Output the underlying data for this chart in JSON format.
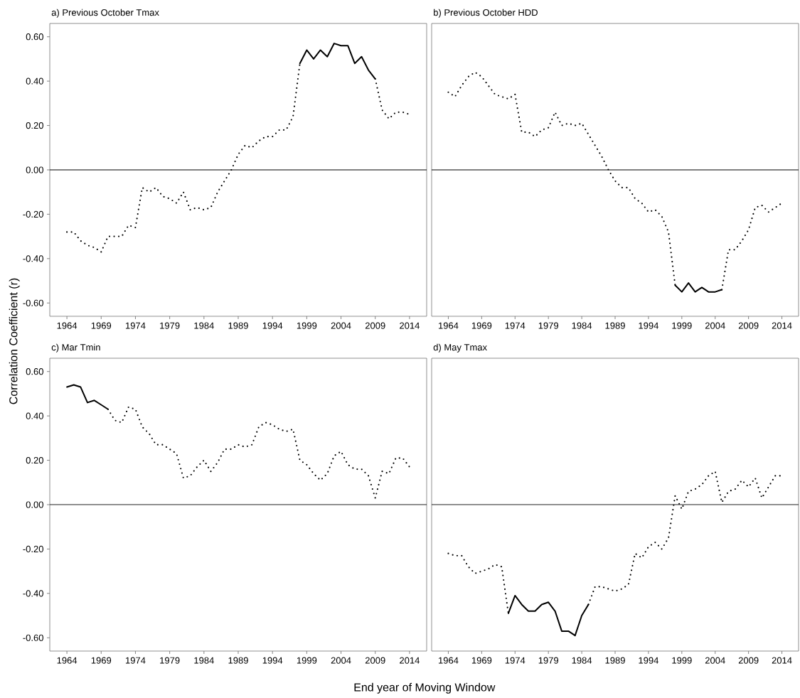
{
  "chart_data": [
    {
      "type": "line",
      "title": "a) Previous October Tmax",
      "ylabel": "Correlation Coefficient (r)",
      "xlim": [
        1961.5,
        2016.5
      ],
      "ylim": [
        -0.66,
        0.66
      ],
      "xticks": [
        1964,
        1969,
        1974,
        1979,
        1984,
        1989,
        1994,
        1999,
        2004,
        2009,
        2014
      ],
      "yticks": [
        {
          "value": -0.6,
          "label": "-0.60"
        },
        {
          "value": -0.4,
          "label": "-0.40"
        },
        {
          "value": -0.2,
          "label": "-0.20"
        },
        {
          "value": 0,
          "label": "0.00"
        },
        {
          "value": 0.2,
          "label": "0.20"
        },
        {
          "value": 0.4,
          "label": "0.40"
        },
        {
          "value": 0.6,
          "label": "0.60"
        }
      ],
      "x": [
        1964,
        1965,
        1966,
        1967,
        1968,
        1969,
        1970,
        1971,
        1972,
        1973,
        1974,
        1975,
        1976,
        1977,
        1978,
        1979,
        1980,
        1981,
        1982,
        1983,
        1984,
        1985,
        1986,
        1987,
        1988,
        1989,
        1990,
        1991,
        1992,
        1993,
        1994,
        1995,
        1996,
        1997,
        1998,
        1999,
        2000,
        2001,
        2002,
        2003,
        2004,
        2005,
        2006,
        2007,
        2008,
        2009,
        2010,
        2011,
        2012,
        2013,
        2014
      ],
      "ref_lines": [
        {
          "axis": "y",
          "value": 0,
          "color": "#000000"
        }
      ],
      "series": [
        {
          "color": "#000000",
          "line_style": "dotted",
          "values": [
            -0.28,
            -0.28,
            -0.32,
            -0.34,
            -0.35,
            -0.37,
            -0.3,
            -0.3,
            -0.3,
            -0.25,
            -0.26,
            -0.08,
            -0.1,
            -0.08,
            -0.12,
            -0.13,
            -0.15,
            -0.1,
            -0.18,
            -0.17,
            -0.18,
            -0.17,
            -0.1,
            -0.05,
            0.0,
            0.07,
            0.11,
            0.1,
            0.13,
            0.15,
            0.15,
            0.18,
            0.18,
            0.24,
            0.48,
            null,
            null,
            null,
            null,
            null,
            null,
            null,
            null,
            null,
            null,
            0.41,
            0.27,
            0.23,
            0.26,
            0.26,
            0.25
          ]
        },
        {
          "color": "#000000",
          "line_style": "solid",
          "values": [
            null,
            null,
            null,
            null,
            null,
            null,
            null,
            null,
            null,
            null,
            null,
            null,
            null,
            null,
            null,
            null,
            null,
            null,
            null,
            null,
            null,
            null,
            null,
            null,
            null,
            null,
            null,
            null,
            null,
            null,
            null,
            null,
            null,
            null,
            0.48,
            0.54,
            0.5,
            0.54,
            0.51,
            0.57,
            0.56,
            0.56,
            0.48,
            0.51,
            0.45,
            0.41,
            null,
            null,
            null,
            null,
            null
          ]
        }
      ]
    },
    {
      "type": "line",
      "title": "b) Previous October HDD",
      "xlim": [
        1961.5,
        2016.5
      ],
      "ylim": [
        -0.66,
        0.66
      ],
      "tick_labels": "x",
      "xticks": [
        1964,
        1969,
        1974,
        1979,
        1984,
        1989,
        1994,
        1999,
        2004,
        2009,
        2014
      ],
      "x": [
        1964,
        1965,
        1966,
        1967,
        1968,
        1969,
        1970,
        1971,
        1972,
        1973,
        1974,
        1975,
        1976,
        1977,
        1978,
        1979,
        1980,
        1981,
        1982,
        1983,
        1984,
        1985,
        1986,
        1987,
        1988,
        1989,
        1990,
        1991,
        1992,
        1993,
        1994,
        1995,
        1996,
        1997,
        1998,
        1999,
        2000,
        2001,
        2002,
        2003,
        2004,
        2005,
        2006,
        2007,
        2008,
        2009,
        2010,
        2011,
        2012,
        2013,
        2014
      ],
      "ref_lines": [
        {
          "axis": "y",
          "value": 0,
          "color": "#000000"
        }
      ],
      "series": [
        {
          "color": "#000000",
          "line_style": "dotted",
          "values": [
            0.35,
            0.33,
            0.38,
            0.42,
            0.44,
            0.42,
            0.38,
            0.34,
            0.33,
            0.32,
            0.34,
            0.17,
            0.17,
            0.15,
            0.18,
            0.19,
            0.26,
            0.2,
            0.21,
            0.2,
            0.21,
            0.16,
            0.11,
            0.06,
            0.0,
            -0.05,
            -0.08,
            -0.08,
            -0.13,
            -0.15,
            -0.19,
            -0.18,
            -0.21,
            -0.28,
            -0.52,
            null,
            null,
            null,
            null,
            null,
            null,
            -0.54,
            -0.36,
            -0.36,
            -0.32,
            -0.27,
            -0.17,
            -0.16,
            -0.19,
            -0.17,
            -0.15
          ]
        },
        {
          "color": "#000000",
          "line_style": "solid",
          "values": [
            null,
            null,
            null,
            null,
            null,
            null,
            null,
            null,
            null,
            null,
            null,
            null,
            null,
            null,
            null,
            null,
            null,
            null,
            null,
            null,
            null,
            null,
            null,
            null,
            null,
            null,
            null,
            null,
            null,
            null,
            null,
            null,
            null,
            null,
            -0.52,
            -0.55,
            -0.51,
            -0.55,
            -0.53,
            -0.55,
            -0.55,
            -0.54,
            null,
            null,
            null,
            null,
            null,
            null,
            null,
            null,
            null
          ]
        }
      ]
    },
    {
      "type": "line",
      "title": "c) Mar Tmin",
      "xlabel": "End year of Moving Window",
      "xlim": [
        1961.5,
        2016.5
      ],
      "ylim": [
        -0.66,
        0.66
      ],
      "xticks": [
        1964,
        1969,
        1974,
        1979,
        1984,
        1989,
        1994,
        1999,
        2004,
        2009,
        2014
      ],
      "yticks": [
        {
          "value": -0.6,
          "label": "-0.60"
        },
        {
          "value": -0.4,
          "label": "-0.40"
        },
        {
          "value": -0.2,
          "label": "-0.20"
        },
        {
          "value": 0,
          "label": "0.00"
        },
        {
          "value": 0.2,
          "label": "0.20"
        },
        {
          "value": 0.4,
          "label": "0.40"
        },
        {
          "value": 0.6,
          "label": "0.60"
        }
      ],
      "x": [
        1964,
        1965,
        1966,
        1967,
        1968,
        1969,
        1970,
        1971,
        1972,
        1973,
        1974,
        1975,
        1976,
        1977,
        1978,
        1979,
        1980,
        1981,
        1982,
        1983,
        1984,
        1985,
        1986,
        1987,
        1988,
        1989,
        1990,
        1991,
        1992,
        1993,
        1994,
        1995,
        1996,
        1997,
        1998,
        1999,
        2000,
        2001,
        2002,
        2003,
        2004,
        2005,
        2006,
        2007,
        2008,
        2009,
        2010,
        2011,
        2012,
        2013,
        2014
      ],
      "ref_lines": [
        {
          "axis": "y",
          "value": 0,
          "color": "#000000"
        }
      ],
      "series": [
        {
          "color": "#000000",
          "line_style": "dotted",
          "values": [
            null,
            null,
            null,
            null,
            null,
            null,
            0.43,
            0.38,
            0.37,
            0.44,
            0.43,
            0.35,
            0.32,
            0.27,
            0.27,
            0.25,
            0.23,
            0.12,
            0.13,
            0.17,
            0.2,
            0.15,
            0.19,
            0.25,
            0.25,
            0.27,
            0.26,
            0.27,
            0.35,
            0.37,
            0.36,
            0.34,
            0.33,
            0.34,
            0.2,
            0.18,
            0.14,
            0.11,
            0.14,
            0.22,
            0.24,
            0.18,
            0.16,
            0.16,
            0.13,
            0.03,
            0.15,
            0.14,
            0.21,
            0.21,
            0.17
          ]
        },
        {
          "color": "#000000",
          "line_style": "solid",
          "values": [
            0.53,
            0.54,
            0.53,
            0.46,
            0.47,
            0.45,
            0.43,
            null,
            null,
            null,
            null,
            null,
            null,
            null,
            null,
            null,
            null,
            null,
            null,
            null,
            null,
            null,
            null,
            null,
            null,
            null,
            null,
            null,
            null,
            null,
            null,
            null,
            null,
            null,
            null,
            null,
            null,
            null,
            null,
            null,
            null,
            null,
            null,
            null,
            null,
            null,
            null,
            null,
            null,
            null,
            null
          ]
        }
      ]
    },
    {
      "type": "line",
      "title": "d) May Tmax",
      "xlim": [
        1961.5,
        2016.5
      ],
      "ylim": [
        -0.66,
        0.66
      ],
      "tick_labels": "x",
      "xticks": [
        1964,
        1969,
        1974,
        1979,
        1984,
        1989,
        1994,
        1999,
        2004,
        2009,
        2014
      ],
      "x": [
        1964,
        1965,
        1966,
        1967,
        1968,
        1969,
        1970,
        1971,
        1972,
        1973,
        1974,
        1975,
        1976,
        1977,
        1978,
        1979,
        1980,
        1981,
        1982,
        1983,
        1984,
        1985,
        1986,
        1987,
        1988,
        1989,
        1990,
        1991,
        1992,
        1993,
        1994,
        1995,
        1996,
        1997,
        1998,
        1999,
        2000,
        2001,
        2002,
        2003,
        2004,
        2005,
        2006,
        2007,
        2008,
        2009,
        2010,
        2011,
        2012,
        2013,
        2014
      ],
      "ref_lines": [
        {
          "axis": "y",
          "value": 0,
          "color": "#000000"
        }
      ],
      "series": [
        {
          "color": "#000000",
          "line_style": "dotted",
          "values": [
            -0.22,
            -0.23,
            -0.23,
            -0.28,
            -0.31,
            -0.3,
            -0.29,
            -0.27,
            -0.28,
            -0.49,
            null,
            null,
            null,
            null,
            null,
            null,
            null,
            null,
            null,
            null,
            null,
            -0.45,
            -0.37,
            -0.37,
            -0.38,
            -0.39,
            -0.38,
            -0.36,
            -0.22,
            -0.24,
            -0.19,
            -0.17,
            -0.2,
            -0.15,
            0.04,
            -0.02,
            0.06,
            0.07,
            0.09,
            0.13,
            0.15,
            0.01,
            0.06,
            0.07,
            0.11,
            0.08,
            0.12,
            0.03,
            0.08,
            0.13,
            0.13
          ]
        },
        {
          "color": "#000000",
          "line_style": "solid",
          "values": [
            null,
            null,
            null,
            null,
            null,
            null,
            null,
            null,
            null,
            -0.49,
            -0.41,
            -0.45,
            -0.48,
            -0.48,
            -0.45,
            -0.44,
            -0.48,
            -0.57,
            -0.57,
            -0.59,
            -0.5,
            -0.45,
            null,
            null,
            null,
            null,
            null,
            null,
            null,
            null,
            null,
            null,
            null,
            null,
            null,
            null,
            null,
            null,
            null,
            null,
            null,
            null,
            null,
            null,
            null,
            null,
            null,
            null,
            null,
            null,
            null
          ]
        }
      ]
    }
  ]
}
